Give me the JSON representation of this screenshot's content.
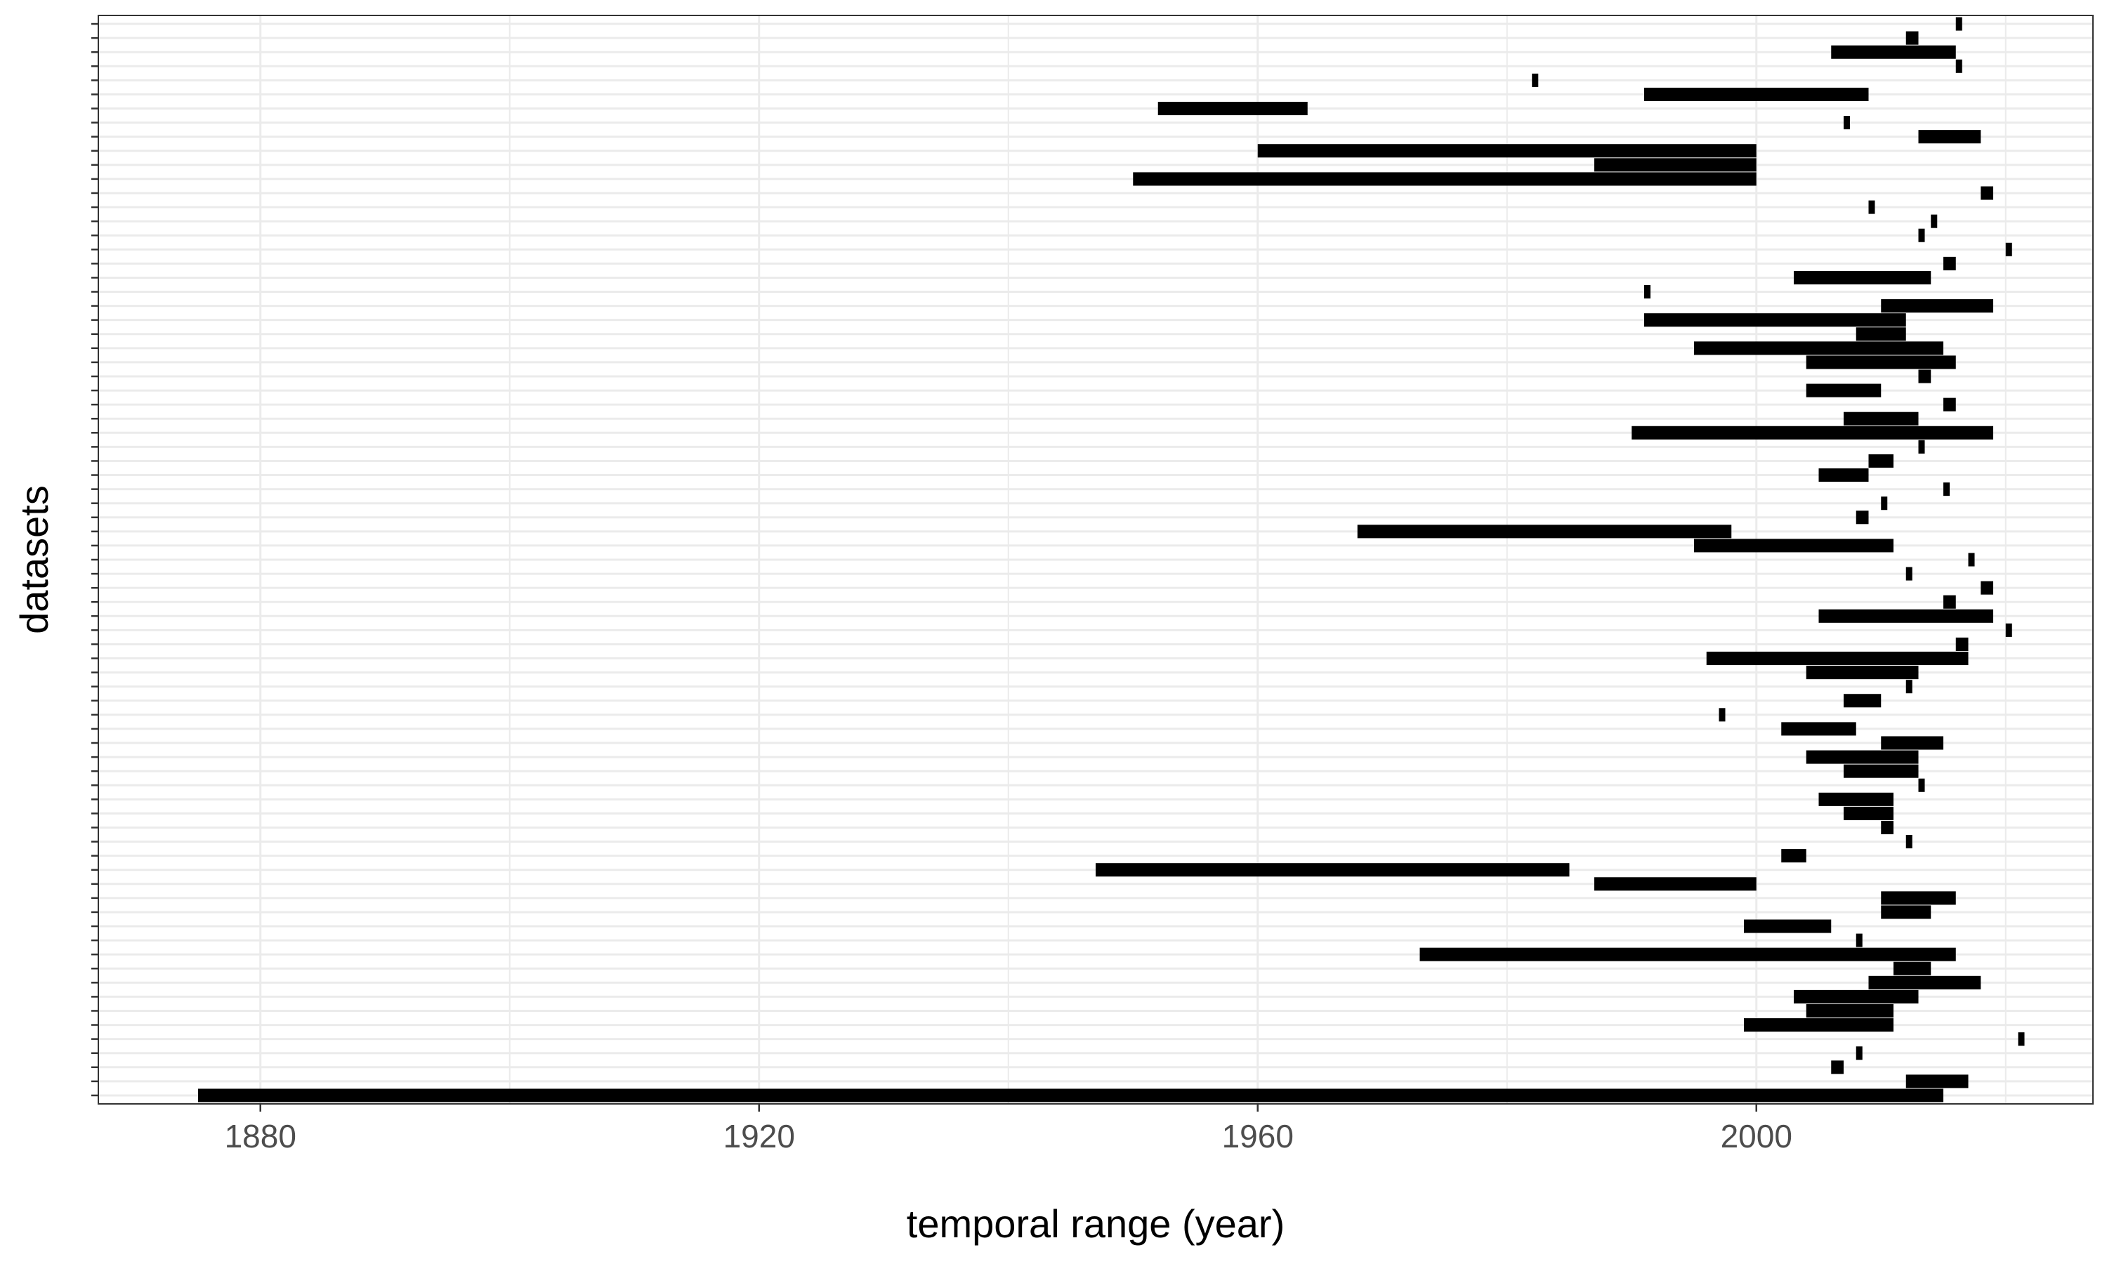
{
  "chart_data": {
    "type": "bar",
    "orientation": "horizontal-range",
    "xlabel": "temporal range (year)",
    "ylabel": "datasets",
    "xlim": [
      1867,
      2027
    ],
    "x_ticks": [
      1880,
      1920,
      1960,
      2000
    ],
    "x_minor_ticks": [
      1900,
      1940,
      1980,
      2020
    ],
    "grid": true,
    "bar_color": "#000000",
    "grid_color": "#ebebeb",
    "series": [
      {
        "ranges": [
          [
            1875,
            2015
          ],
          [
            2012,
            2017
          ],
          [
            2006,
            2007
          ],
          [
            2008,
            2008.5
          ],
          [
            2021,
            2021.5
          ],
          [
            1999,
            2011
          ],
          [
            2004,
            2011
          ],
          [
            2003,
            2013
          ],
          [
            2009,
            2018
          ],
          [
            2011,
            2014
          ],
          [
            1973,
            2016
          ],
          [
            2008,
            2008.5
          ],
          [
            1999,
            2006
          ],
          [
            2010,
            2014
          ],
          [
            2010,
            2016
          ],
          [
            1987,
            2000
          ],
          [
            1947,
            1985
          ],
          [
            2002,
            2004
          ],
          [
            2012,
            2012.5
          ],
          [
            2010,
            2011
          ],
          [
            2007,
            2011
          ],
          [
            2005,
            2011
          ],
          [
            2013,
            2013.5
          ],
          [
            2007,
            2013
          ],
          [
            2004,
            2013
          ],
          [
            2010,
            2015
          ],
          [
            2002,
            2008
          ],
          [
            1997,
            1997.5
          ],
          [
            2007,
            2010
          ],
          [
            2012,
            2012.5
          ],
          [
            2004,
            2013
          ],
          [
            1996,
            2017
          ],
          [
            2016,
            2017
          ],
          [
            2020,
            2020.5
          ],
          [
            2005,
            2019
          ],
          [
            2015,
            2016
          ],
          [
            2018,
            2019
          ],
          [
            2012,
            2012.5
          ],
          [
            2017,
            2017.5
          ],
          [
            1995,
            2011
          ],
          [
            1968,
            1998
          ],
          [
            2008,
            2009
          ],
          [
            2010,
            2010.5
          ],
          [
            2015,
            2015.5
          ],
          [
            2005,
            2009
          ],
          [
            2009,
            2011
          ],
          [
            2013,
            2013.5
          ],
          [
            1990,
            2019
          ],
          [
            2007,
            2013
          ],
          [
            2015,
            2016
          ],
          [
            2004,
            2010
          ],
          [
            2013,
            2014
          ],
          [
            2004,
            2016
          ],
          [
            1995,
            2015
          ],
          [
            2008,
            2012
          ],
          [
            1991,
            2012
          ],
          [
            2010,
            2019
          ],
          [
            1991,
            1991.5
          ],
          [
            2003,
            2014
          ],
          [
            2015,
            2016
          ],
          [
            2020,
            2020.5
          ],
          [
            2013,
            2013.5
          ],
          [
            2014,
            2014.5
          ],
          [
            2009,
            2009.5
          ],
          [
            2018,
            2019
          ],
          [
            1950,
            2000
          ],
          [
            1987,
            2000
          ],
          [
            1960,
            2000
          ],
          [
            2013,
            2018
          ],
          [
            2007,
            2007.5
          ],
          [
            1952,
            1964
          ],
          [
            1991,
            2009
          ],
          [
            1982,
            1982.5
          ],
          [
            2016,
            2016.5
          ],
          [
            2006,
            2016
          ],
          [
            2012,
            2013
          ],
          [
            2016,
            2016.5
          ]
        ]
      }
    ]
  }
}
